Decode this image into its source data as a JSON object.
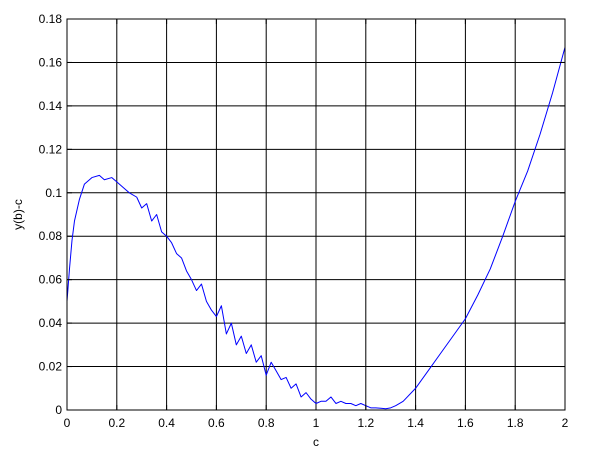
{
  "chart_data": {
    "type": "line",
    "title": "",
    "xlabel": "c",
    "ylabel": "y(b)-c",
    "xlim": [
      0,
      2
    ],
    "ylim": [
      0,
      0.18
    ],
    "grid": true,
    "x_ticks": [
      0,
      0.2,
      0.4,
      0.6,
      0.8,
      1,
      1.2,
      1.4,
      1.6,
      1.8,
      2
    ],
    "x_tick_labels": [
      "0",
      "0.2",
      "0.4",
      "0.6",
      "0.8",
      "1",
      "1.2",
      "1.4",
      "1.6",
      "1.8",
      "2"
    ],
    "y_ticks": [
      0,
      0.02,
      0.04,
      0.06,
      0.08,
      0.1,
      0.12,
      0.14,
      0.16,
      0.18
    ],
    "y_tick_labels": [
      "0",
      "0.02",
      "0.04",
      "0.06",
      "0.08",
      "0.1",
      "0.12",
      "0.14",
      "0.16",
      "0.18"
    ],
    "series_color": "#0000ff",
    "series": [
      {
        "x": [
          0,
          0.01,
          0.02,
          0.03,
          0.05,
          0.07,
          0.1,
          0.13,
          0.15,
          0.18,
          0.2,
          0.22,
          0.25,
          0.28,
          0.3,
          0.32,
          0.34,
          0.36,
          0.38,
          0.4,
          0.42,
          0.44,
          0.46,
          0.48,
          0.5,
          0.52,
          0.54,
          0.56,
          0.58,
          0.6,
          0.62,
          0.64,
          0.66,
          0.68,
          0.7,
          0.72,
          0.74,
          0.76,
          0.78,
          0.8,
          0.82,
          0.84,
          0.86,
          0.88,
          0.9,
          0.92,
          0.94,
          0.96,
          0.98,
          1.0,
          1.02,
          1.04,
          1.06,
          1.08,
          1.1,
          1.12,
          1.14,
          1.16,
          1.18,
          1.2,
          1.22,
          1.24,
          1.26,
          1.28,
          1.3,
          1.32,
          1.35,
          1.4,
          1.45,
          1.5,
          1.55,
          1.6,
          1.65,
          1.7,
          1.75,
          1.8,
          1.85,
          1.9,
          1.95,
          2.0
        ],
        "y": [
          0.05,
          0.065,
          0.078,
          0.087,
          0.097,
          0.104,
          0.107,
          0.108,
          0.106,
          0.107,
          0.105,
          0.103,
          0.1,
          0.098,
          0.093,
          0.095,
          0.087,
          0.09,
          0.082,
          0.08,
          0.077,
          0.072,
          0.07,
          0.064,
          0.06,
          0.055,
          0.058,
          0.05,
          0.046,
          0.043,
          0.048,
          0.035,
          0.04,
          0.03,
          0.034,
          0.026,
          0.03,
          0.022,
          0.025,
          0.016,
          0.022,
          0.018,
          0.014,
          0.015,
          0.01,
          0.012,
          0.006,
          0.008,
          0.005,
          0.003,
          0.004,
          0.004,
          0.006,
          0.003,
          0.004,
          0.003,
          0.003,
          0.002,
          0.003,
          0.002,
          0.001,
          0.001,
          0.0008,
          0.0006,
          0.001,
          0.002,
          0.004,
          0.01,
          0.018,
          0.026,
          0.034,
          0.042,
          0.053,
          0.065,
          0.08,
          0.096,
          0.11,
          0.127,
          0.146,
          0.167
        ]
      }
    ]
  }
}
